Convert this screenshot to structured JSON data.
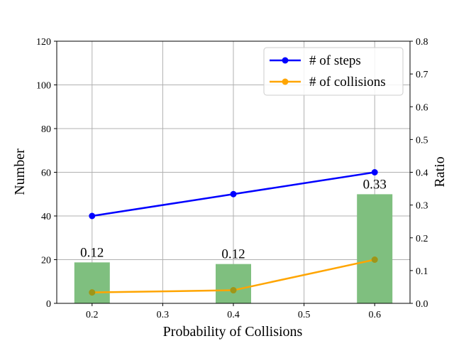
{
  "chart_data": {
    "type": "bar+line",
    "title": "",
    "xlabel": "Probability of Collisions",
    "ylabel_left": "Number",
    "ylabel_right": "Ratio",
    "xlim": [
      0.15,
      0.65
    ],
    "ylim_left": [
      0,
      120
    ],
    "ylim_right": [
      0,
      0.8
    ],
    "x_ticks": [
      "0.2",
      "0.3",
      "0.4",
      "0.5",
      "0.6"
    ],
    "y_left_ticks": [
      "0",
      "20",
      "40",
      "60",
      "80",
      "100",
      "120"
    ],
    "y_right_ticks": [
      "0.0",
      "0.1",
      "0.2",
      "0.3",
      "0.4",
      "0.5",
      "0.6",
      "0.7",
      "0.8"
    ],
    "grid": true,
    "legend_position": "top-right",
    "bars": {
      "axis": "right",
      "color": "#7fbf7f",
      "x": [
        0.2,
        0.4,
        0.6
      ],
      "values": [
        0.125,
        0.12,
        0.333
      ],
      "labels": [
        "0.12",
        "0.12",
        "0.33"
      ]
    },
    "series": [
      {
        "name": "# of steps",
        "axis": "left",
        "color": "#0000ff",
        "x": [
          0.2,
          0.4,
          0.6
        ],
        "values": [
          40,
          50,
          60
        ]
      },
      {
        "name": "# of collisions",
        "axis": "left",
        "color": "#ffa500",
        "x": [
          0.2,
          0.4,
          0.6
        ],
        "values": [
          5,
          6,
          20
        ]
      }
    ]
  }
}
